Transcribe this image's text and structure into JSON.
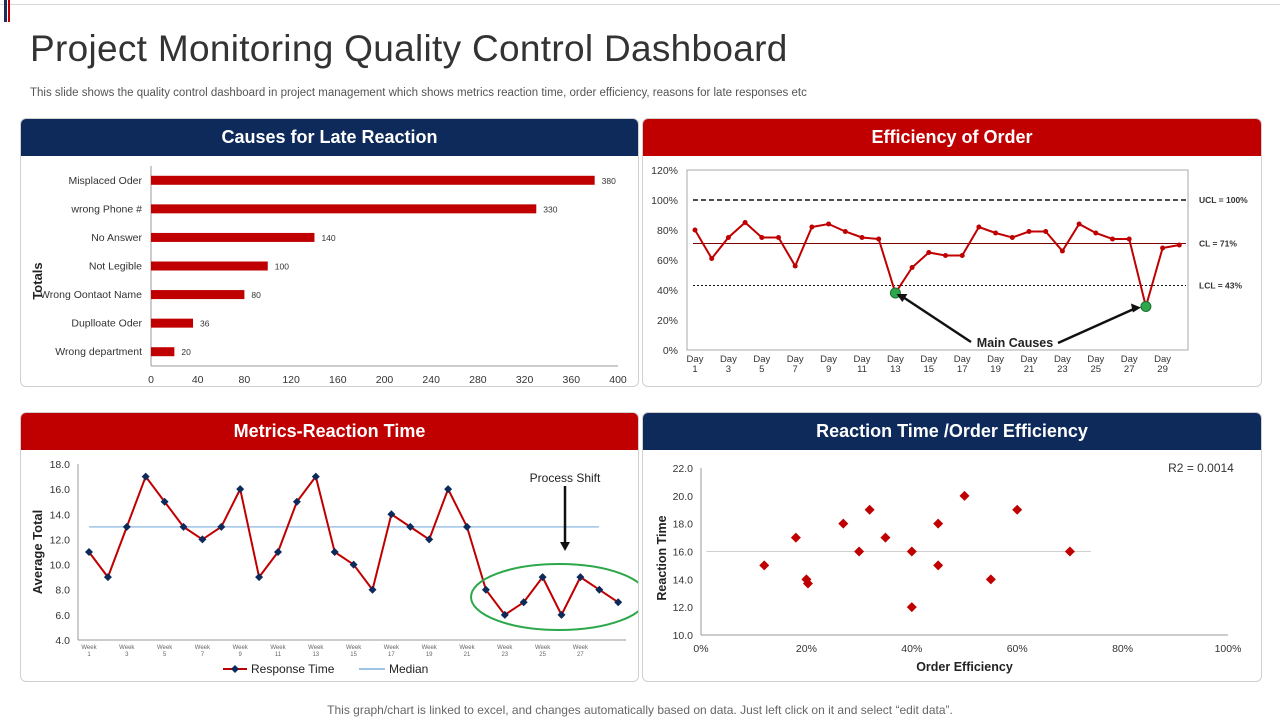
{
  "page": {
    "title": "Project Monitoring Quality Control Dashboard",
    "subtitle": "This slide shows the quality control dashboard in project management which shows metrics reaction time, order efficiency, reasons for late responses etc",
    "footer": "This graph/chart is linked to excel, and changes automatically based on data. Just left click on it and select “edit data”."
  },
  "colors": {
    "red": "#c00000",
    "navy": "#0d2a5a",
    "median": "#9dc3e6",
    "green": "#2ca84a"
  },
  "chart_data": [
    {
      "id": "late_reaction",
      "type": "bar",
      "orientation": "horizontal",
      "title": "Causes for Late Reaction",
      "ylabel": "Totals",
      "xlabel": "",
      "categories": [
        "Misplaced Oder",
        "wrong Phone #",
        "No Answer",
        "Not Legible",
        "Wrong Oontaot Name",
        "Duplloate Oder",
        "Wrong department"
      ],
      "values": [
        380,
        330,
        140,
        100,
        80,
        36,
        20
      ],
      "xlim": [
        0,
        400
      ],
      "xticks": [
        0,
        40,
        80,
        120,
        160,
        200,
        240,
        280,
        320,
        360,
        400
      ]
    },
    {
      "id": "order_efficiency",
      "type": "line",
      "title": "Efficiency of Order",
      "x": [
        "Day 1",
        "Day 2",
        "Day 3",
        "Day 4",
        "Day 5",
        "Day 6",
        "Day 7",
        "Day 8",
        "Day 9",
        "Day 10",
        "Day 11",
        "Day 12",
        "Day 13",
        "Day 14",
        "Day 15",
        "Day 16",
        "Day 17",
        "Day 18",
        "Day 19",
        "Day 20",
        "Day 21",
        "Day 22",
        "Day 23",
        "Day 24",
        "Day 25",
        "Day 26",
        "Day 27",
        "Day 28",
        "Day 29",
        "Day 30"
      ],
      "xtick_labels": [
        "Day 1",
        "Day 3",
        "Day 5",
        "Day 7",
        "Day 9",
        "Day 11",
        "Day 13",
        "Day 15",
        "Day 17",
        "Day 19",
        "Day 21",
        "Day 23",
        "Day 25",
        "Day 27",
        "Day 29"
      ],
      "values": [
        80,
        61,
        75,
        85,
        75,
        75,
        56,
        82,
        84,
        79,
        75,
        74,
        38,
        55,
        65,
        63,
        63,
        82,
        78,
        75,
        79,
        79,
        66,
        84,
        78,
        74,
        74,
        29,
        68,
        70
      ],
      "ylim": [
        0,
        120
      ],
      "yticks": [
        "0%",
        "20%",
        "40%",
        "60%",
        "80%",
        "100%",
        "120%"
      ],
      "ucl": 100,
      "cl": 71,
      "lcl": 43,
      "ucl_label": "UCL = 100%",
      "cl_label": "CL = 71%",
      "lcl_label": "LCL = 43%",
      "annotation": "Main Causes",
      "highlight_points": [
        13,
        28
      ]
    },
    {
      "id": "reaction_time",
      "type": "line",
      "title": "Metrics-Reaction Time",
      "ylabel": "Average Total",
      "x": [
        "Week 1",
        "Week 2",
        "Week 3",
        "Week 4",
        "Week 5",
        "Week 6",
        "Week 7",
        "Week 8",
        "Week 9",
        "Week 10",
        "Week 11",
        "Week 12",
        "Week 13",
        "Week 14",
        "Week 15",
        "Week 16",
        "Week 17",
        "Week 18",
        "Week 19",
        "Week 20",
        "Week 21",
        "Week 22",
        "Week 23",
        "Week 24",
        "Week 25",
        "Week 26",
        "Week 27",
        "Week 28",
        "Week 29"
      ],
      "xtick_labels": [
        "Week 1",
        "Week 3",
        "Week 5",
        "Week 7",
        "Week 9",
        "Week 11",
        "Week 13",
        "Week 15",
        "Week 17",
        "Week 19",
        "Week 21",
        "Week 23",
        "Week 25",
        "Week 27"
      ],
      "series": [
        {
          "name": "Response Time",
          "values": [
            11,
            9,
            13,
            17,
            15,
            13,
            12,
            13,
            16,
            9,
            11,
            15,
            17,
            11,
            10,
            8,
            14,
            13,
            12,
            16,
            13,
            8,
            6,
            7,
            9,
            6,
            9,
            8,
            7
          ]
        },
        {
          "name": "Median",
          "value": 13
        }
      ],
      "ylim": [
        4,
        18
      ],
      "yticks": [
        "4.0",
        "6.0",
        "8.0",
        "10.0",
        "12.0",
        "14.0",
        "16.0",
        "18.0"
      ],
      "annotation": "Process Shift"
    },
    {
      "id": "reaction_vs_efficiency",
      "type": "scatter",
      "title": "Reaction Time /Order Efficiency",
      "xlabel": "Order Efficiency",
      "ylabel": "Reaction Time",
      "points": [
        [
          12,
          15
        ],
        [
          18,
          17
        ],
        [
          20,
          14
        ],
        [
          20.3,
          13.7
        ],
        [
          27,
          18
        ],
        [
          30,
          16
        ],
        [
          32,
          19
        ],
        [
          35,
          17
        ],
        [
          40,
          16
        ],
        [
          40,
          12
        ],
        [
          45,
          18
        ],
        [
          45,
          15
        ],
        [
          50,
          20
        ],
        [
          55,
          14
        ],
        [
          60,
          19
        ],
        [
          70,
          16
        ]
      ],
      "xlim": [
        0,
        100
      ],
      "ylim": [
        10,
        22
      ],
      "xticks": [
        "0%",
        "20%",
        "40%",
        "60%",
        "80%",
        "100%"
      ],
      "yticks": [
        "10.0",
        "12.0",
        "14.0",
        "16.0",
        "18.0",
        "20.0",
        "22.0"
      ],
      "trendline_y": 16,
      "r2_label": "R2 = 0.0014"
    }
  ]
}
